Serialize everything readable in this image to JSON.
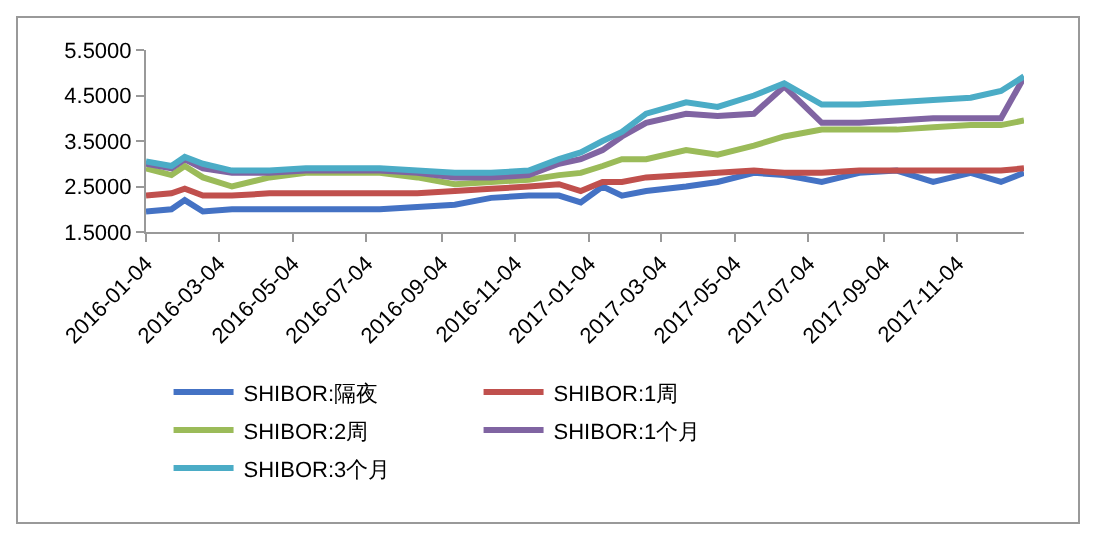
{
  "chart_data": {
    "type": "line",
    "x": [
      "2016-01-04",
      "2016-01-25",
      "2016-02-05",
      "2016-02-20",
      "2016-03-15",
      "2016-04-15",
      "2016-05-15",
      "2016-06-15",
      "2016-07-15",
      "2016-08-15",
      "2016-09-15",
      "2016-10-15",
      "2016-11-15",
      "2016-12-10",
      "2016-12-28",
      "2017-01-15",
      "2017-01-31",
      "2017-02-20",
      "2017-03-25",
      "2017-04-20",
      "2017-05-20",
      "2017-06-14",
      "2017-07-15",
      "2017-08-15",
      "2017-09-15",
      "2017-10-15",
      "2017-11-15",
      "2017-12-10",
      "2017-12-29"
    ],
    "series": [
      {
        "name": "SHIBOR:隔夜",
        "color": "#4472c4",
        "values": [
          1.95,
          2.0,
          2.2,
          1.95,
          2.0,
          2.0,
          2.0,
          2.0,
          2.0,
          2.05,
          2.1,
          2.25,
          2.3,
          2.3,
          2.15,
          2.5,
          2.3,
          2.4,
          2.5,
          2.6,
          2.8,
          2.75,
          2.6,
          2.8,
          2.85,
          2.6,
          2.8,
          2.6,
          2.8
        ]
      },
      {
        "name": "SHIBOR:1周",
        "color": "#c0504d",
        "values": [
          2.3,
          2.35,
          2.45,
          2.3,
          2.3,
          2.35,
          2.35,
          2.35,
          2.35,
          2.35,
          2.4,
          2.45,
          2.5,
          2.55,
          2.4,
          2.6,
          2.6,
          2.7,
          2.75,
          2.8,
          2.85,
          2.8,
          2.8,
          2.85,
          2.85,
          2.85,
          2.85,
          2.85,
          2.9
        ]
      },
      {
        "name": "SHIBOR:2周",
        "color": "#9bbb59",
        "values": [
          2.9,
          2.75,
          2.95,
          2.7,
          2.5,
          2.7,
          2.8,
          2.8,
          2.8,
          2.7,
          2.55,
          2.6,
          2.65,
          2.75,
          2.8,
          2.95,
          3.1,
          3.1,
          3.3,
          3.2,
          3.4,
          3.6,
          3.75,
          3.75,
          3.75,
          3.8,
          3.85,
          3.85,
          3.95
        ]
      },
      {
        "name": "SHIBOR:1个月",
        "color": "#8064a2",
        "values": [
          3.0,
          2.9,
          3.1,
          2.9,
          2.8,
          2.8,
          2.85,
          2.85,
          2.85,
          2.8,
          2.7,
          2.7,
          2.75,
          3.0,
          3.1,
          3.3,
          3.6,
          3.9,
          4.1,
          4.05,
          4.1,
          4.7,
          3.9,
          3.9,
          3.95,
          4.0,
          4.0,
          4.0,
          4.9
        ]
      },
      {
        "name": "SHIBOR:3个月",
        "color": "#4bacc6",
        "values": [
          3.05,
          2.95,
          3.15,
          3.0,
          2.85,
          2.85,
          2.9,
          2.9,
          2.9,
          2.85,
          2.8,
          2.8,
          2.85,
          3.1,
          3.25,
          3.5,
          3.7,
          4.1,
          4.35,
          4.25,
          4.5,
          4.77,
          4.3,
          4.3,
          4.35,
          4.4,
          4.45,
          4.6,
          4.92
        ]
      }
    ],
    "xlim": [
      "2016-01-04",
      "2017-12-29"
    ],
    "xticks": [
      "2016-01-04",
      "2016-03-04",
      "2016-05-04",
      "2016-07-04",
      "2016-09-04",
      "2016-11-04",
      "2017-01-04",
      "2017-03-04",
      "2017-05-04",
      "2017-07-04",
      "2017-09-04",
      "2017-11-04"
    ],
    "ylim": [
      1.5,
      5.5
    ],
    "yticks": [
      {
        "value": 1.5,
        "label": "1.5000"
      },
      {
        "value": 2.5,
        "label": "2.5000"
      },
      {
        "value": 3.5,
        "label": "3.5000"
      },
      {
        "value": 4.5,
        "label": "4.5000"
      },
      {
        "value": 5.5,
        "label": "5.5000"
      }
    ],
    "grid": false,
    "legend": "bottom",
    "marker": "none",
    "line_style": "solid"
  }
}
